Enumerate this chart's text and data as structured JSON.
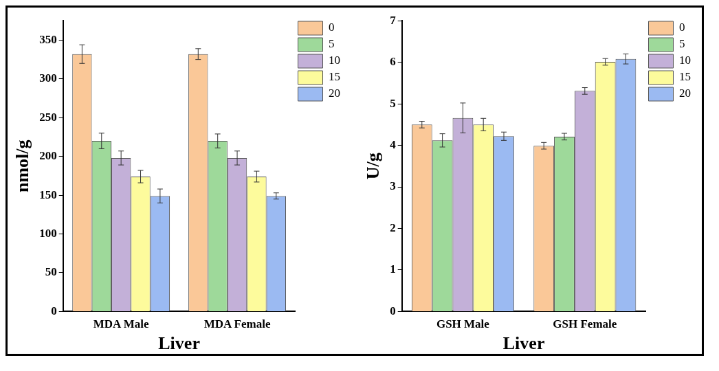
{
  "chart_data": [
    {
      "type": "bar",
      "xlabel": "Liver",
      "ylabel": "nmol/g",
      "categories": [
        "MDA Male",
        "MDA Female"
      ],
      "ylim": [
        0,
        375
      ],
      "yticks": [
        0,
        50,
        100,
        150,
        200,
        250,
        300,
        350
      ],
      "legend": "top right",
      "grid": false,
      "series": [
        {
          "name": "0",
          "color": "#fac898",
          "values": [
            332,
            332
          ],
          "errors": [
            12,
            7
          ]
        },
        {
          "name": "5",
          "color": "#9ed99a",
          "values": [
            220,
            220
          ],
          "errors": [
            10,
            9
          ]
        },
        {
          "name": "10",
          "color": "#c3b0d8",
          "values": [
            198,
            198
          ],
          "errors": [
            9,
            9
          ]
        },
        {
          "name": "15",
          "color": "#fdfb9c",
          "values": [
            174,
            174
          ],
          "errors": [
            8,
            7
          ]
        },
        {
          "name": "20",
          "color": "#9bbaf2",
          "values": [
            149,
            149
          ],
          "errors": [
            9,
            4
          ]
        }
      ]
    },
    {
      "type": "bar",
      "xlabel": "Liver",
      "ylabel": "U/g",
      "categories": [
        "GSH Male",
        "GSH Female"
      ],
      "ylim": [
        0,
        7
      ],
      "yticks": [
        0,
        1,
        2,
        3,
        4,
        5,
        6,
        7
      ],
      "legend": "top right",
      "grid": false,
      "series": [
        {
          "name": "0",
          "color": "#fac898",
          "values": [
            4.5,
            3.99
          ],
          "errors": [
            0.08,
            0.08
          ]
        },
        {
          "name": "5",
          "color": "#9ed99a",
          "values": [
            4.12,
            4.21
          ],
          "errors": [
            0.16,
            0.08
          ]
        },
        {
          "name": "10",
          "color": "#c3b0d8",
          "values": [
            4.66,
            5.31
          ],
          "errors": [
            0.36,
            0.08
          ]
        },
        {
          "name": "15",
          "color": "#fdfb9c",
          "values": [
            4.5,
            6.01
          ],
          "errors": [
            0.15,
            0.08
          ]
        },
        {
          "name": "20",
          "color": "#9bbaf2",
          "values": [
            4.22,
            6.08
          ],
          "errors": [
            0.1,
            0.12
          ]
        }
      ]
    }
  ]
}
